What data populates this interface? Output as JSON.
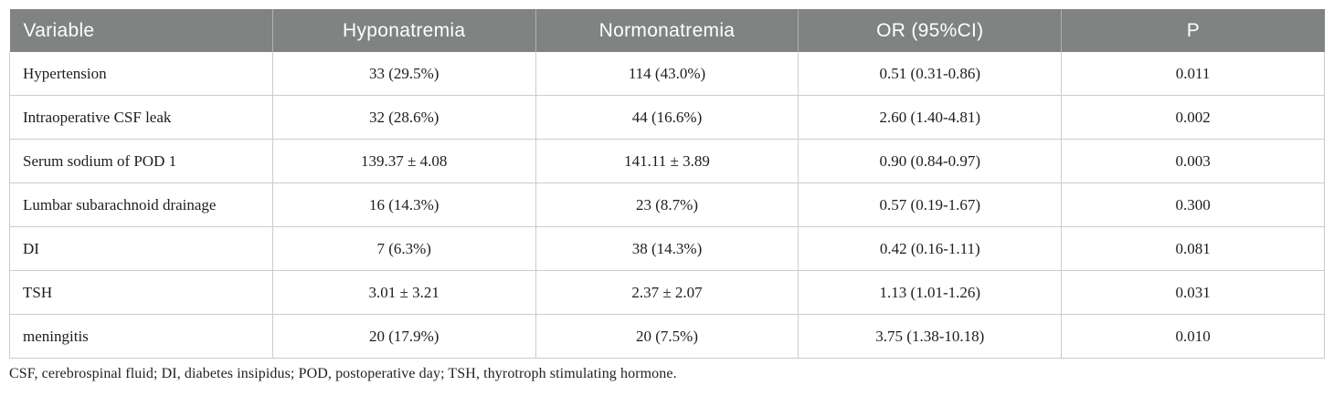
{
  "colors": {
    "header_bg": "#7f8381",
    "header_text": "#ffffff",
    "body_text": "#1d1d1d",
    "cell_border": "#cccccc",
    "header_separator": "#aeb1af",
    "page_bg": "#ffffff"
  },
  "table": {
    "columns": [
      {
        "label": "Variable",
        "align": "left"
      },
      {
        "label": "Hyponatremia",
        "align": "center"
      },
      {
        "label": "Normonatremia",
        "align": "center"
      },
      {
        "label": "OR (95%CI)",
        "align": "center"
      },
      {
        "label": "P",
        "align": "center"
      }
    ],
    "rows": [
      [
        "Hypertension",
        "33 (29.5%)",
        "114 (43.0%)",
        "0.51 (0.31-0.86)",
        "0.011"
      ],
      [
        "Intraoperative CSF leak",
        "32 (28.6%)",
        "44 (16.6%)",
        "2.60 (1.40-4.81)",
        "0.002"
      ],
      [
        "Serum sodium of POD 1",
        "139.37 ± 4.08",
        "141.11 ± 3.89",
        "0.90 (0.84-0.97)",
        "0.003"
      ],
      [
        "Lumbar subarachnoid drainage",
        "16 (14.3%)",
        "23 (8.7%)",
        "0.57 (0.19-1.67)",
        "0.300"
      ],
      [
        "DI",
        "7 (6.3%)",
        "38 (14.3%)",
        "0.42 (0.16-1.11)",
        "0.081"
      ],
      [
        "TSH",
        "3.01 ± 3.21",
        "2.37 ± 2.07",
        "1.13 (1.01-1.26)",
        "0.031"
      ],
      [
        "meningitis",
        "20 (17.9%)",
        "20 (7.5%)",
        "3.75 (1.38-10.18)",
        "0.010"
      ]
    ],
    "footnote": "CSF, cerebrospinal fluid; DI, diabetes insipidus; POD, postoperative day; TSH, thyrotroph stimulating hormone."
  },
  "chart_data": {
    "type": "table",
    "title": "",
    "columns": [
      "Variable",
      "Hyponatremia",
      "Normonatremia",
      "OR (95%CI)",
      "P"
    ],
    "rows": [
      [
        "Hypertension",
        "33 (29.5%)",
        "114 (43.0%)",
        "0.51 (0.31-0.86)",
        "0.011"
      ],
      [
        "Intraoperative CSF leak",
        "32 (28.6%)",
        "44 (16.6%)",
        "2.60 (1.40-4.81)",
        "0.002"
      ],
      [
        "Serum sodium of POD 1",
        "139.37 ± 4.08",
        "141.11 ± 3.89",
        "0.90 (0.84-0.97)",
        "0.003"
      ],
      [
        "Lumbar subarachnoid drainage",
        "16 (14.3%)",
        "23 (8.7%)",
        "0.57 (0.19-1.67)",
        "0.300"
      ],
      [
        "DI",
        "7 (6.3%)",
        "38 (14.3%)",
        "0.42 (0.16-1.11)",
        "0.081"
      ],
      [
        "TSH",
        "3.01 ± 3.21",
        "2.37 ± 2.07",
        "1.13 (1.01-1.26)",
        "0.031"
      ],
      [
        "meningitis",
        "20 (17.9%)",
        "20 (7.5%)",
        "3.75 (1.38-10.18)",
        "0.010"
      ]
    ]
  }
}
